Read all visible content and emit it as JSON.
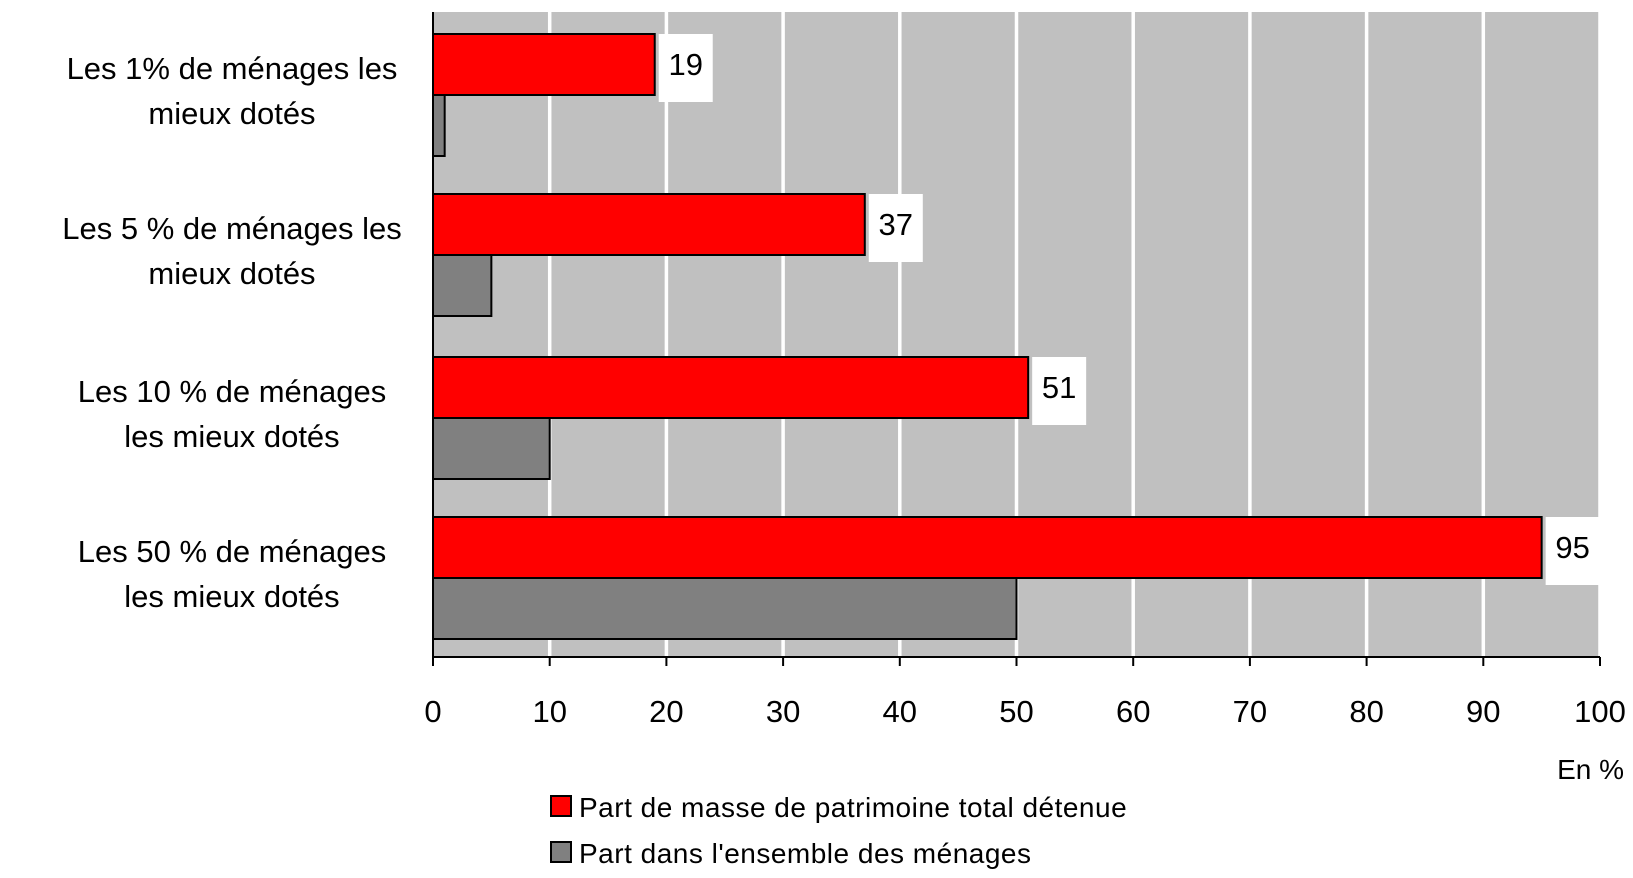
{
  "chart_data": {
    "type": "bar",
    "orientation": "horizontal",
    "categories": [
      [
        "Les 1% de ménages les",
        "mieux dotés"
      ],
      [
        "Les 5 % de ménages les",
        "mieux dotés"
      ],
      [
        "Les 10 % de ménages",
        "les mieux dotés"
      ],
      [
        "Les 50 % de ménages",
        "les mieux dotés"
      ]
    ],
    "series": [
      {
        "name": "Part de masse de patrimoine total détenue",
        "values": [
          19,
          37,
          51,
          95
        ],
        "color": "#ff0000",
        "data_labels": [
          "19",
          "37",
          "51",
          "95"
        ]
      },
      {
        "name": "Part dans l'ensemble des ménages",
        "values": [
          1,
          5,
          10,
          50
        ],
        "color": "#808080"
      }
    ],
    "xlim": [
      0,
      100
    ],
    "xticks": [
      "0",
      "10",
      "20",
      "30",
      "40",
      "50",
      "60",
      "70",
      "80",
      "90",
      "100"
    ],
    "xticks_values": [
      0,
      10,
      20,
      30,
      40,
      50,
      60,
      70,
      80,
      90,
      100
    ],
    "unit_label": "En %",
    "grid": true,
    "plot_background": "#c0c0c0",
    "grid_color": "#ffffff",
    "legend_position": "bottom"
  }
}
